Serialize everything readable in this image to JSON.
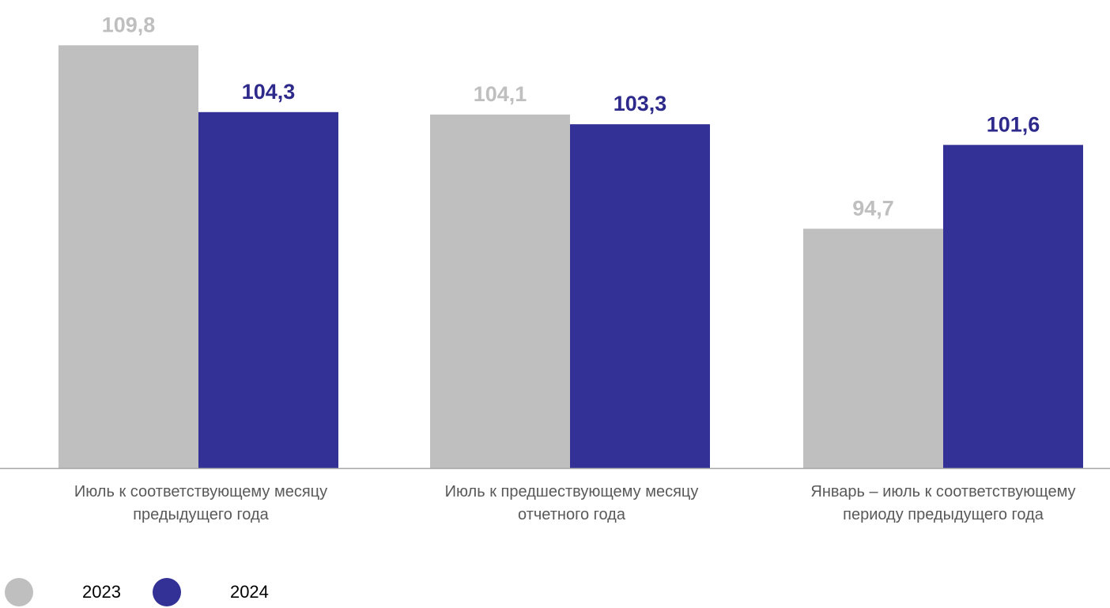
{
  "chart_data": {
    "type": "bar",
    "categories": [
      [
        "Июль к соответствующему месяцу",
        "предыдущего года"
      ],
      [
        "Июль к предшествующему месяцу",
        "отчетного года"
      ],
      [
        "Январь – июль к соответствующему",
        "периоду предыдущего года"
      ]
    ],
    "series": [
      {
        "name": "2023",
        "values": [
          109.8,
          104.1,
          94.7
        ],
        "labels": [
          "109,8",
          "104,1",
          "94,7"
        ],
        "color": "#bfbfbf"
      },
      {
        "name": "2024",
        "values": [
          104.3,
          103.3,
          101.6
        ],
        "labels": [
          "104,3",
          "103,3",
          "101,6"
        ],
        "color": "#333096"
      }
    ],
    "ylim": [
      75,
      110.6
    ],
    "grid": false,
    "legend": "bottom-left",
    "label_colors": {
      "2023": "#bfbfbf",
      "2024": "#2e2a8c"
    }
  }
}
